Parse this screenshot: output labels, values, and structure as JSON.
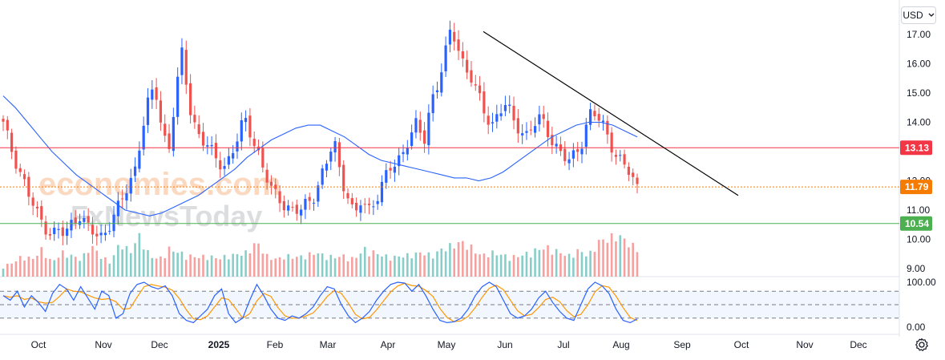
{
  "currency_button": {
    "label": "USD",
    "icon": "chevron-down-icon"
  },
  "settings_icon": "gear-icon",
  "watermark": {
    "line1": "economies.com",
    "line2": "FxNewsToday"
  },
  "chart_data": {
    "type": "candlestick",
    "price_axis": {
      "ticks": [
        "17.00",
        "16.00",
        "15.00",
        "14.00",
        "13.00",
        "12.00",
        "11.00",
        "10.00",
        "9.00"
      ],
      "ylim": [
        8.7,
        17.2
      ]
    },
    "oscillator_axis": {
      "ticks": [
        "100.00",
        "0.00"
      ],
      "ylim": [
        0,
        100
      ],
      "upper_band": 80,
      "mid_band": 50,
      "lower_band": 20
    },
    "time_axis": {
      "labels": [
        "Oct",
        "Nov",
        "Dec",
        "2025",
        "Feb",
        "Mar",
        "Apr",
        "May",
        "Jun",
        "Jul",
        "Aug",
        "Sep",
        "Oct",
        "Nov",
        "Dec"
      ],
      "bold": [
        "2025"
      ]
    },
    "horizontal_lines": [
      {
        "value": 13.13,
        "label": "13.13",
        "color": "#f23645"
      },
      {
        "value": 11.79,
        "label": "11.79",
        "color": "#f57c00",
        "style": "dotted"
      },
      {
        "value": 10.54,
        "label": "10.54",
        "color": "#4caf50"
      }
    ],
    "trendline": {
      "start": {
        "date": "late May 2025",
        "value": 17.1
      },
      "end": {
        "date": "early Oct 2025",
        "value": 11.5
      },
      "color": "#000000"
    },
    "up_color": "#2962ff",
    "down_color": "#ef5350",
    "moving_average_color": "#2962ff",
    "stoch_k_color": "#2962ff",
    "stoch_d_color": "#ff9800",
    "price_path": [
      13.9,
      13.2,
      12.6,
      12.0,
      11.3,
      10.8,
      10.5,
      10.2,
      10.3,
      10.1,
      10.6,
      10.9,
      10.5,
      10.2,
      10.0,
      10.4,
      10.8,
      11.2,
      11.7,
      12.3,
      13.6,
      14.6,
      15.2,
      13.8,
      13.1,
      14.9,
      16.4,
      14.5,
      13.8,
      13.4,
      13.0,
      12.7,
      12.5,
      12.9,
      13.4,
      14.1,
      13.6,
      13.0,
      12.2,
      11.6,
      11.4,
      11.2,
      11.0,
      10.9,
      11.2,
      11.5,
      12.1,
      12.6,
      13.4,
      12.1,
      11.6,
      10.7,
      11.3,
      11.0,
      11.4,
      11.9,
      12.3,
      12.6,
      13.0,
      13.6,
      13.9,
      13.2,
      14.7,
      15.3,
      16.2,
      17.1,
      16.6,
      15.9,
      15.5,
      14.8,
      14.2,
      14.0,
      14.4,
      14.6,
      14.0,
      13.8,
      13.6,
      13.9,
      14.1,
      13.7,
      13.3,
      12.9,
      12.6,
      12.9,
      13.4,
      14.3,
      14.2,
      13.9,
      13.4,
      12.9,
      12.5,
      12.2,
      11.79
    ],
    "ma_path": [
      14.9,
      14.5,
      14.0,
      13.5,
      13.0,
      12.6,
      12.2,
      11.9,
      11.6,
      11.3,
      11.0,
      10.9,
      10.8,
      10.9,
      11.1,
      11.3,
      11.5,
      11.8,
      12.1,
      12.4,
      12.8,
      13.1,
      13.4,
      13.6,
      13.8,
      13.9,
      13.9,
      13.7,
      13.5,
      13.2,
      12.9,
      12.7,
      12.6,
      12.5,
      12.4,
      12.3,
      12.2,
      12.1,
      12.1,
      12.0,
      12.1,
      12.3,
      12.6,
      12.9,
      13.2,
      13.5,
      13.7,
      13.9,
      14.0,
      14.0,
      13.9,
      13.7,
      13.5
    ],
    "stoch_k": [
      70,
      60,
      80,
      45,
      70,
      55,
      35,
      75,
      95,
      85,
      60,
      90,
      65,
      40,
      80,
      70,
      20,
      30,
      75,
      95,
      100,
      90,
      85,
      92,
      70,
      30,
      15,
      10,
      25,
      40,
      70,
      85,
      30,
      10,
      20,
      60,
      95,
      70,
      40,
      20,
      15,
      25,
      20,
      30,
      45,
      70,
      90,
      85,
      50,
      25,
      10,
      20,
      35,
      60,
      80,
      95,
      100,
      98,
      80,
      95,
      70,
      40,
      15,
      10,
      12,
      20,
      40,
      70,
      90,
      100,
      90,
      60,
      30,
      20,
      25,
      40,
      65,
      80,
      55,
      35,
      20,
      15,
      50,
      85,
      100,
      92,
      75,
      40,
      15,
      10,
      18
    ],
    "volume_path": [
      0.15,
      0.2,
      0.3,
      0.25,
      0.4,
      0.2,
      0.35,
      0.3,
      0.25,
      0.45,
      0.3,
      0.2,
      0.5,
      0.35,
      0.6,
      0.3,
      0.25,
      0.4,
      0.35,
      0.3,
      0.28,
      0.3,
      0.26,
      0.3,
      0.32,
      0.35,
      0.5,
      0.3,
      0.25,
      0.3,
      0.28,
      0.3,
      0.35,
      0.3,
      0.28,
      0.3,
      0.25,
      0.4,
      0.35,
      0.3,
      0.28,
      0.3,
      0.32,
      0.35,
      0.3,
      0.4,
      0.45,
      0.5,
      0.42,
      0.3,
      0.35,
      0.32,
      0.28,
      0.3,
      0.35,
      0.4,
      0.42,
      0.35,
      0.3,
      0.38,
      0.3,
      0.5,
      0.55,
      0.6,
      0.5,
      0.4
    ]
  }
}
